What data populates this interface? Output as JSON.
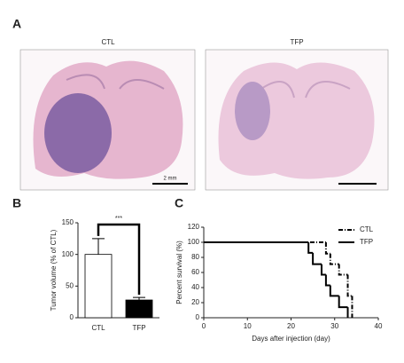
{
  "panels": {
    "a": {
      "label": "A",
      "images": [
        {
          "title": "CTL",
          "scale_bar": "2 mm"
        },
        {
          "title": "TFP"
        }
      ]
    },
    "b": {
      "label": "B"
    },
    "c": {
      "label": "C"
    }
  },
  "chart_data": [
    {
      "type": "bar",
      "categories": [
        "CTL",
        "TFP"
      ],
      "values": [
        100,
        28
      ],
      "errors": [
        25,
        4
      ],
      "colors": [
        "#ffffff",
        "#000000"
      ],
      "ylabel": "Tumor volume (% of CTL)",
      "annotation": "***",
      "ylim": [
        0,
        150
      ],
      "yticks": [
        0,
        50,
        100,
        150
      ]
    },
    {
      "type": "line",
      "xlabel": "Days after injection (day)",
      "ylabel": "Percent survival (%)",
      "series": [
        {
          "name": "CTL",
          "color": "#000000",
          "dash": "5 2 1 2",
          "x": [
            0,
            28,
            29,
            31,
            33,
            34
          ],
          "values": [
            100,
            85,
            71,
            57,
            29,
            0
          ]
        },
        {
          "name": "TFP",
          "color": "#000000",
          "dash": "none",
          "x": [
            0,
            24,
            25,
            27,
            28,
            29,
            31,
            33
          ],
          "values": [
            100,
            86,
            71,
            57,
            43,
            29,
            14,
            0
          ]
        }
      ],
      "xlim": [
        0,
        40
      ],
      "xticks": [
        0,
        10,
        20,
        30,
        40
      ],
      "ylim": [
        0,
        120
      ],
      "yticks": [
        0,
        20,
        40,
        60,
        80,
        100,
        120
      ],
      "legend": "upper-right"
    }
  ]
}
